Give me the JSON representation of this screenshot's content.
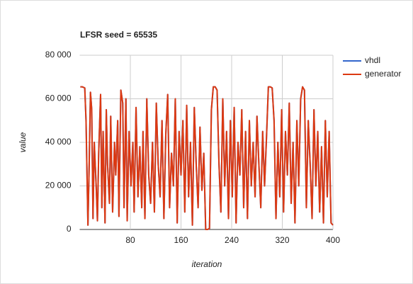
{
  "chart_data": {
    "type": "line",
    "title": "LFSR seed = 65535",
    "xlabel": "iteration",
    "ylabel": "value",
    "x": [
      1,
      4,
      8,
      10,
      13,
      15,
      17,
      19,
      21,
      23,
      26,
      28,
      30,
      33,
      35,
      37,
      40,
      42,
      44,
      47,
      49,
      52,
      55,
      57,
      60,
      62,
      65,
      68,
      70,
      73,
      75,
      78,
      81,
      84,
      86,
      89,
      92,
      95,
      98,
      100,
      103,
      106,
      109,
      112,
      115,
      118,
      121,
      124,
      127,
      130,
      133,
      136,
      139,
      142,
      145,
      148,
      151,
      154,
      157,
      160,
      163,
      166,
      169,
      172,
      175,
      178,
      181,
      184,
      187,
      190,
      193,
      196,
      199,
      202,
      205,
      208,
      211,
      214,
      217,
      220,
      223,
      226,
      229,
      232,
      235,
      238,
      241,
      244,
      247,
      250,
      253,
      256,
      259,
      262,
      265,
      268,
      271,
      274,
      277,
      280,
      283,
      286,
      289,
      292,
      295,
      298,
      301,
      304,
      307,
      310,
      313,
      316,
      319,
      322,
      325,
      328,
      331,
      334,
      337,
      340,
      343,
      346,
      349,
      352,
      355,
      358,
      361,
      364,
      367,
      370,
      373,
      376,
      379,
      382,
      385,
      388,
      391,
      394,
      397,
      400
    ],
    "series": [
      {
        "name": "vhdl",
        "color": "#3366cc",
        "values": [
          65500,
          65500,
          65000,
          50000,
          2000,
          30000,
          63000,
          55000,
          5000,
          40000,
          20000,
          4000,
          35000,
          62000,
          10000,
          45000,
          3000,
          55000,
          30000,
          12000,
          52000,
          8000,
          40000,
          25000,
          50000,
          6000,
          64000,
          58000,
          10000,
          60000,
          4000,
          45000,
          20000,
          40000,
          8000,
          56000,
          15000,
          38000,
          10000,
          45000,
          5000,
          60000,
          25000,
          12000,
          40000,
          8000,
          58000,
          30000,
          15000,
          50000,
          5000,
          44000,
          62000,
          10000,
          35000,
          20000,
          60000,
          3000,
          45000,
          25000,
          50000,
          8000,
          57000,
          15000,
          40000,
          2000,
          56000,
          30000,
          10000,
          47000,
          18000,
          35000,
          0,
          0,
          500,
          55000,
          65500,
          65500,
          64000,
          30000,
          8000,
          60000,
          20000,
          45000,
          5000,
          50000,
          15000,
          56000,
          3000,
          40000,
          25000,
          55000,
          10000,
          45000,
          5000,
          50000,
          20000,
          40000,
          15000,
          52000,
          30000,
          10000,
          45000,
          20000,
          42000,
          65500,
          65500,
          65000,
          50000,
          5000,
          40000,
          15000,
          55000,
          8000,
          45000,
          25000,
          58000,
          12000,
          40000,
          3000,
          50000,
          20000,
          60000,
          65500,
          64000,
          10000,
          50000,
          30000,
          5000,
          55000,
          20000,
          45000,
          8000,
          38000,
          3000,
          50000,
          15000,
          45000,
          3000,
          2000
        ]
      },
      {
        "name": "generator",
        "color": "#dc3912",
        "values": [
          65500,
          65500,
          65000,
          50000,
          2000,
          30000,
          63000,
          55000,
          5000,
          40000,
          20000,
          4000,
          35000,
          62000,
          10000,
          45000,
          3000,
          55000,
          30000,
          12000,
          52000,
          8000,
          40000,
          25000,
          50000,
          6000,
          64000,
          58000,
          10000,
          60000,
          4000,
          45000,
          20000,
          40000,
          8000,
          56000,
          15000,
          38000,
          10000,
          45000,
          5000,
          60000,
          25000,
          12000,
          40000,
          8000,
          58000,
          30000,
          15000,
          50000,
          5000,
          44000,
          62000,
          10000,
          35000,
          20000,
          60000,
          3000,
          45000,
          25000,
          50000,
          8000,
          57000,
          15000,
          40000,
          2000,
          56000,
          30000,
          10000,
          47000,
          18000,
          35000,
          0,
          0,
          500,
          55000,
          65500,
          65500,
          64000,
          30000,
          8000,
          60000,
          20000,
          45000,
          5000,
          50000,
          15000,
          56000,
          3000,
          40000,
          25000,
          55000,
          10000,
          45000,
          5000,
          50000,
          20000,
          40000,
          15000,
          52000,
          30000,
          10000,
          45000,
          20000,
          42000,
          65500,
          65500,
          65000,
          50000,
          5000,
          40000,
          15000,
          55000,
          8000,
          45000,
          25000,
          58000,
          12000,
          40000,
          3000,
          50000,
          20000,
          60000,
          65500,
          64000,
          10000,
          50000,
          30000,
          5000,
          55000,
          20000,
          45000,
          8000,
          38000,
          3000,
          50000,
          15000,
          45000,
          3000,
          2000
        ]
      }
    ],
    "xlim": [
      0,
      400
    ],
    "xticks": [
      80,
      160,
      240,
      320,
      400
    ],
    "ylim": [
      0,
      80000
    ],
    "yticks": [
      0,
      {
        "value": 20000,
        "label": "20 000"
      },
      {
        "value": 40000,
        "label": "40 000"
      },
      {
        "value": 60000,
        "label": "60 000"
      },
      {
        "value": 80000,
        "label": "80 000"
      }
    ],
    "grid": true,
    "legend": "right"
  }
}
